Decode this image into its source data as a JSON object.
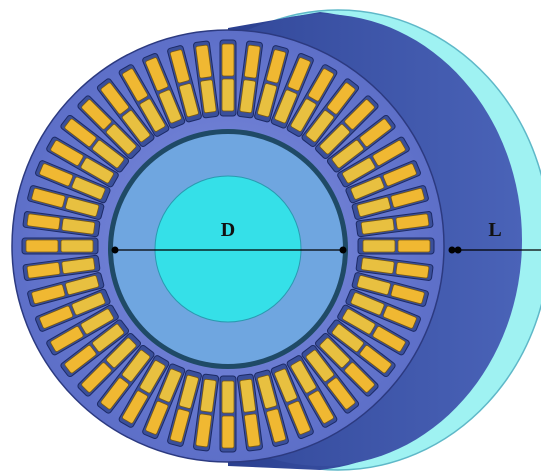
{
  "labels": {
    "diameter": "D",
    "length": "L"
  }
}
